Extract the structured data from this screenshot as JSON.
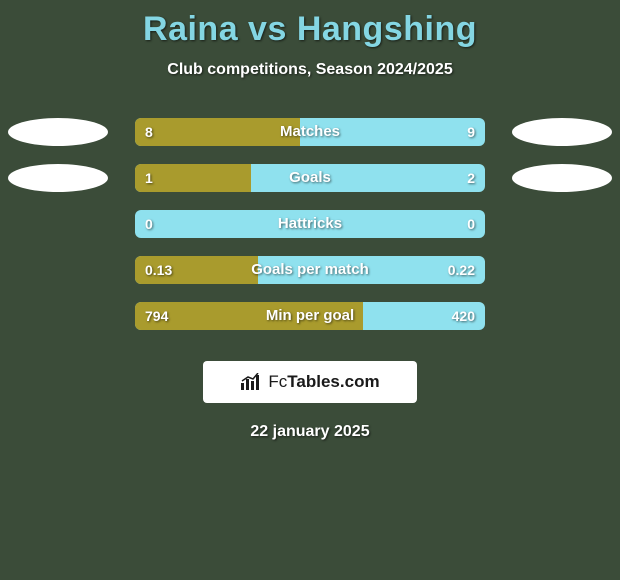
{
  "background_color": "#3b4c39",
  "title": "Raina vs Hangshing",
  "title_color": "#84d6e3",
  "title_fontsize": 34,
  "subtitle": "Club competitions, Season 2024/2025",
  "subtitle_color": "#ffffff",
  "oval_color": "#ffffff",
  "bar_track_color": "#8fe1ee",
  "bar_fill_color": "#a99b2d",
  "bar_text_color": "#ffffff",
  "rows": [
    {
      "label": "Matches",
      "left_val": "8",
      "right_val": "9",
      "fill_pct": 47,
      "show_ovals": true
    },
    {
      "label": "Goals",
      "left_val": "1",
      "right_val": "2",
      "fill_pct": 33,
      "show_ovals": true
    },
    {
      "label": "Hattricks",
      "left_val": "0",
      "right_val": "0",
      "fill_pct": 0,
      "show_ovals": false
    },
    {
      "label": "Goals per match",
      "left_val": "0.13",
      "right_val": "0.22",
      "fill_pct": 35,
      "show_ovals": false
    },
    {
      "label": "Min per goal",
      "left_val": "794",
      "right_val": "420",
      "fill_pct": 65,
      "show_ovals": false
    }
  ],
  "logo": {
    "bg": "#ffffff",
    "text_plain": "Fc",
    "text_bold": "Tables.com",
    "text_color": "#1a1a1a"
  },
  "date_text": "22 january 2025",
  "date_color": "#ffffff"
}
